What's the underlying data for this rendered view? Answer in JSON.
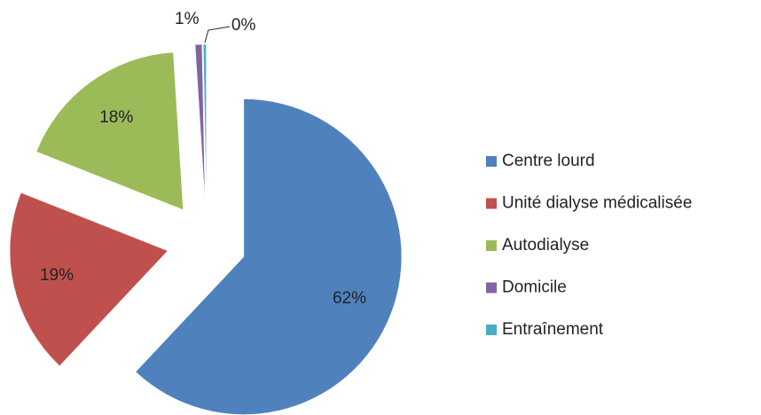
{
  "chart_data": {
    "type": "pie",
    "categories": [
      "Centre lourd",
      "Unité dialyse médicalisée",
      "Autodialyse",
      "Domicile",
      "Entraînement"
    ],
    "values": [
      62,
      19,
      18,
      0.7,
      0.3
    ],
    "value_labels": [
      "62%",
      "19%",
      "18%",
      "1%",
      "0%"
    ],
    "colors": [
      "#4f81bd",
      "#c0504d",
      "#9bbb59",
      "#8064a2",
      "#4bacc6"
    ],
    "exploded": true,
    "legend": "right"
  }
}
